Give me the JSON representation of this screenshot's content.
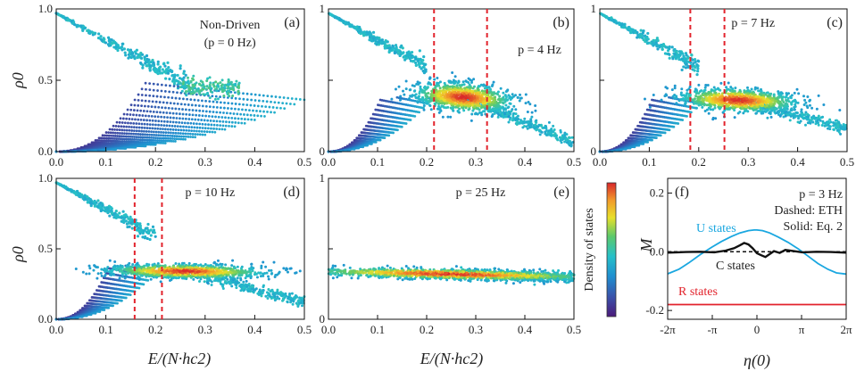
{
  "figure": {
    "ylabel_rho": "ρ0",
    "xlabel_E": "E/(N·hc2)",
    "colorbar_label": "Density of states",
    "colormap": [
      "#4b1a7a",
      "#3b4fa8",
      "#1f8fd0",
      "#26c0c9",
      "#5cc96b",
      "#e8e02a",
      "#f29a2a",
      "#d8262a"
    ]
  },
  "chart_data": [
    {
      "id": "a",
      "type": "scatter",
      "panel_label": "(a)",
      "annotation_lines": [
        "Non-Driven",
        "(p = 0 Hz)"
      ],
      "xlim": [
        0,
        0.5
      ],
      "ylim": [
        0,
        1
      ],
      "xticks": [
        "0.0",
        "0.1",
        "0.2",
        "0.3",
        "0.4",
        "0.5"
      ],
      "yticks": [
        {
          "v": 0,
          "label": "0.0"
        },
        {
          "v": 0.5,
          "label": "0.5"
        },
        {
          "v": 1,
          "label": "1.0"
        }
      ],
      "xlabel": "",
      "ylabel": "ρ0",
      "dashed_lines": []
    },
    {
      "id": "b",
      "type": "scatter",
      "panel_label": "(b)",
      "annotation_lines": [
        "p = 4 Hz"
      ],
      "xlim": [
        0,
        0.5
      ],
      "ylim": [
        0,
        1
      ],
      "xticks": [
        "0.0",
        "0.1",
        "0.2",
        "0.3",
        "0.4",
        "0.5"
      ],
      "yticks": [
        {
          "v": 0,
          "label": "0"
        },
        {
          "v": 0.5,
          "label": ""
        },
        {
          "v": 1,
          "label": "1"
        }
      ],
      "xlabel": "",
      "ylabel": "",
      "dashed_lines": [
        0.215,
        0.323
      ]
    },
    {
      "id": "c",
      "type": "scatter",
      "panel_label": "(c)",
      "annotation_lines": [
        "p = 7 Hz"
      ],
      "xlim": [
        0,
        0.5
      ],
      "ylim": [
        0,
        1
      ],
      "xticks": [
        "0.0",
        "0.1",
        "0.2",
        "0.3",
        "0.4",
        "0.5"
      ],
      "yticks": [
        {
          "v": 0,
          "label": "0"
        },
        {
          "v": 0.5,
          "label": ""
        },
        {
          "v": 1,
          "label": "1"
        }
      ],
      "xlabel": "",
      "ylabel": "",
      "dashed_lines": [
        0.183,
        0.252
      ]
    },
    {
      "id": "d",
      "type": "scatter",
      "panel_label": "(d)",
      "annotation_lines": [
        "p = 10 Hz"
      ],
      "xlim": [
        0,
        0.5
      ],
      "ylim": [
        0,
        1
      ],
      "xticks": [
        "0.0",
        "0.1",
        "0.2",
        "0.3",
        "0.4",
        "0.5"
      ],
      "yticks": [
        {
          "v": 0,
          "label": "0.0"
        },
        {
          "v": 0.5,
          "label": "0.5"
        },
        {
          "v": 1,
          "label": "1.0"
        }
      ],
      "xlabel": "E/(N·hc2)",
      "ylabel": "ρ0",
      "dashed_lines": [
        0.158,
        0.213
      ]
    },
    {
      "id": "e",
      "type": "scatter",
      "panel_label": "(e)",
      "annotation_lines": [
        "p = 25 Hz"
      ],
      "xlim": [
        0,
        0.5
      ],
      "ylim": [
        0,
        1
      ],
      "xticks": [
        "0.0",
        "0.1",
        "0.2",
        "0.3",
        "0.4",
        "0.5"
      ],
      "yticks": [
        {
          "v": 0,
          "label": "0"
        },
        {
          "v": 0.5,
          "label": ""
        },
        {
          "v": 1,
          "label": "1"
        }
      ],
      "xlabel": "E/(N·hc2)",
      "ylabel": "",
      "dashed_lines": []
    },
    {
      "id": "f",
      "type": "line",
      "panel_label": "(f)",
      "annotation_lines": [
        "p = 3 Hz",
        "Dashed: ETH",
        "Solid: Eq. 2"
      ],
      "xlim": [
        -6.2832,
        6.2832
      ],
      "ylim": [
        -0.23,
        0.25
      ],
      "xticks": [
        {
          "v": -6.2832,
          "label": "-2π"
        },
        {
          "v": -3.1416,
          "label": "-π"
        },
        {
          "v": 0,
          "label": "0"
        },
        {
          "v": 3.1416,
          "label": "π"
        },
        {
          "v": 6.2832,
          "label": "2π"
        }
      ],
      "yticks": [
        {
          "v": 0.2,
          "label": "0.2"
        },
        {
          "v": 0.0,
          "label": "0.0"
        },
        {
          "v": -0.2,
          "label": "-0.2"
        }
      ],
      "xlabel": "η(0)",
      "ylabel": "M",
      "series": [
        {
          "name": "U states",
          "color": "#1aa7e0",
          "x": [
            -6.28,
            -5.5,
            -4.8,
            -4.0,
            -3.2,
            -2.5,
            -1.8,
            -1.2,
            -0.6,
            -0.2,
            0.0,
            0.4,
            0.9,
            1.5,
            2.2,
            2.9,
            3.6,
            4.3,
            5.0,
            5.6,
            6.28
          ],
          "y": [
            -0.075,
            -0.06,
            -0.038,
            -0.01,
            0.015,
            0.035,
            0.052,
            0.064,
            0.072,
            0.074,
            0.074,
            0.072,
            0.064,
            0.05,
            0.032,
            0.01,
            -0.015,
            -0.04,
            -0.06,
            -0.072,
            -0.076
          ]
        },
        {
          "name": "C states",
          "color": "#111111",
          "x": [
            -6.28,
            -5.0,
            -4.0,
            -3.0,
            -2.2,
            -1.6,
            -1.2,
            -0.9,
            -0.6,
            -0.3,
            0.0,
            0.3,
            0.6,
            0.9,
            1.2,
            1.6,
            2.0,
            2.6,
            3.2,
            4.2,
            5.2,
            6.28
          ],
          "y": [
            -0.003,
            -0.001,
            0.0,
            -0.002,
            0.004,
            0.012,
            0.022,
            0.03,
            0.025,
            0.012,
            -0.005,
            -0.012,
            -0.018,
            -0.008,
            0.002,
            -0.004,
            0.006,
            0.002,
            -0.002,
            0.0,
            -0.001,
            -0.003
          ]
        },
        {
          "name": "R states",
          "color": "#e2232c",
          "x": [
            -6.28,
            6.28
          ],
          "y": [
            -0.18,
            -0.18
          ]
        }
      ],
      "eth_line": 0.0,
      "series_labels": {
        "U": "U states",
        "C": "C states",
        "R": "R states"
      }
    }
  ]
}
